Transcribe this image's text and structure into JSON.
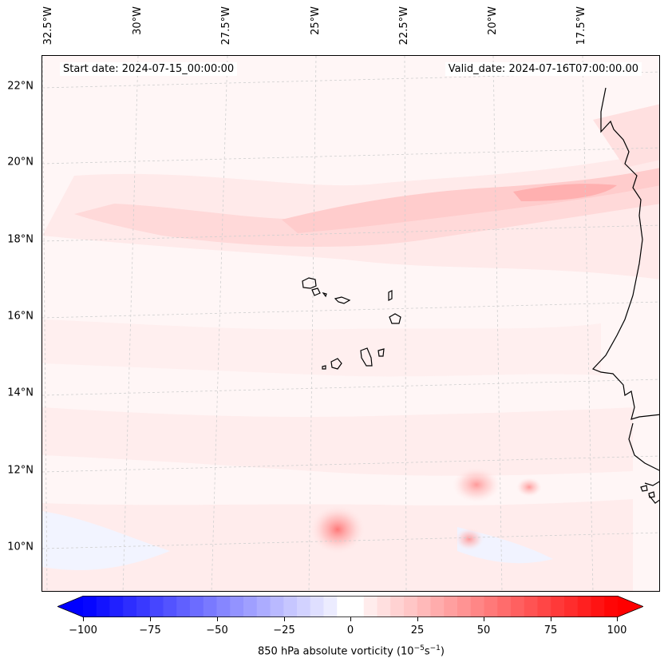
{
  "map": {
    "start_date": "Start date: 2024-07-15_00:00:00",
    "valid_date": "Valid_date: 2024-07-16T07:00:00.00",
    "lat_labels": [
      "22°N",
      "20°N",
      "18°N",
      "16°N",
      "14°N",
      "12°N",
      "10°N"
    ],
    "lon_labels": [
      "32.5°W",
      "30°W",
      "27.5°W",
      "25°W",
      "22.5°W",
      "20°W",
      "17.5°W"
    ],
    "field": "850 hPa absolute vorticity",
    "colors": {
      "positive": "#ff0000",
      "negative": "#0000ff",
      "zero": "#ffffff",
      "coast": "#000000",
      "grid": "#c8c8c8"
    }
  },
  "colorbar": {
    "ticks": [
      "−100",
      "−75",
      "−50",
      "−25",
      "0",
      "25",
      "50",
      "75",
      "100"
    ],
    "label_prefix": "850 hPa absolute vorticity (10",
    "label_exp1": "−5",
    "label_mid": "s",
    "label_exp2": "−1",
    "label_suffix": ")",
    "min": -100,
    "max": 100
  }
}
